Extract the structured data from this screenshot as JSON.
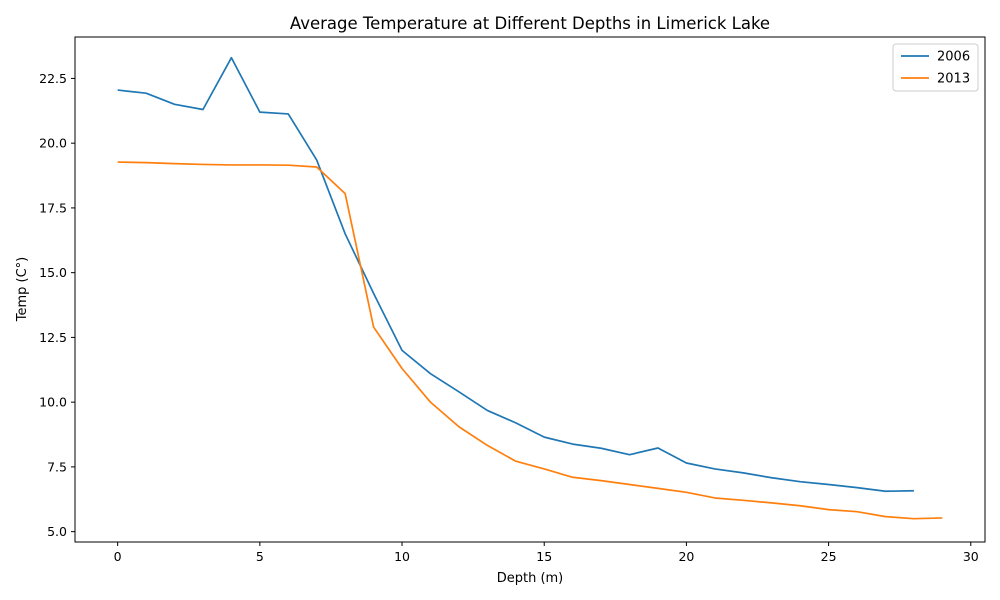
{
  "chart_data": {
    "type": "line",
    "title": "Average Temperature at Different Depths in Limerick Lake",
    "xlabel": "Depth (m)",
    "ylabel": "Temp (C°)",
    "xlim": [
      -1.5,
      30.5
    ],
    "ylim": [
      4.6,
      24.1
    ],
    "xticks": [
      0,
      5,
      10,
      15,
      20,
      25,
      30
    ],
    "xtick_labels": [
      "0",
      "5",
      "10",
      "15",
      "20",
      "25",
      "30"
    ],
    "yticks": [
      5.0,
      7.5,
      10.0,
      12.5,
      15.0,
      17.5,
      20.0,
      22.5
    ],
    "ytick_labels": [
      "5.0",
      "7.5",
      "10.0",
      "12.5",
      "15.0",
      "17.5",
      "20.0",
      "22.5"
    ],
    "grid": false,
    "legend_position": "top-right",
    "series": [
      {
        "name": "2006",
        "color": "#1f77b4",
        "x": [
          0,
          1,
          2,
          3,
          4,
          5,
          6,
          7,
          8,
          9,
          10,
          11,
          12,
          13,
          14,
          15,
          16,
          17,
          18,
          19,
          20,
          21,
          22,
          23,
          24,
          25,
          26,
          27,
          28
        ],
        "y": [
          22.05,
          21.93,
          21.5,
          21.3,
          23.3,
          21.2,
          21.13,
          19.35,
          16.5,
          14.2,
          12.0,
          11.1,
          10.4,
          9.68,
          9.2,
          8.65,
          8.38,
          8.22,
          7.97,
          8.23,
          7.65,
          7.42,
          7.27,
          7.08,
          6.93,
          6.82,
          6.7,
          6.56,
          6.58
        ]
      },
      {
        "name": "2013",
        "color": "#ff7f0e",
        "x": [
          0,
          1,
          2,
          3,
          4,
          5,
          6,
          7,
          8,
          9,
          10,
          11,
          12,
          13,
          14,
          15,
          16,
          17,
          18,
          19,
          20,
          21,
          22,
          23,
          24,
          25,
          26,
          27,
          28,
          29
        ],
        "y": [
          19.27,
          19.25,
          19.21,
          19.18,
          19.16,
          19.16,
          19.15,
          19.08,
          18.05,
          12.9,
          11.3,
          10.0,
          9.05,
          8.33,
          7.72,
          7.42,
          7.1,
          6.97,
          6.82,
          6.67,
          6.52,
          6.3,
          6.21,
          6.11,
          6.0,
          5.85,
          5.77,
          5.58,
          5.5,
          5.53
        ]
      }
    ]
  }
}
